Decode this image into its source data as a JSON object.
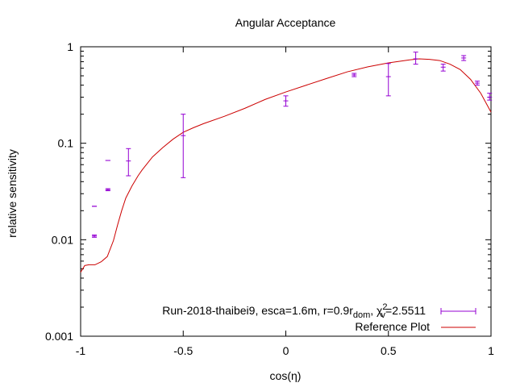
{
  "chart_data": {
    "type": "scatter",
    "title": "Angular Acceptance",
    "xlabel": "cos(η)",
    "ylabel": "relative sensitivity",
    "xlim": [
      -1,
      1
    ],
    "ylim": [
      0.001,
      1
    ],
    "yscale": "log",
    "grid": false,
    "legend_position": "bottom-right",
    "x_ticks": [
      {
        "value": -1,
        "label": "-1"
      },
      {
        "value": -0.5,
        "label": "-0.5"
      },
      {
        "value": 0,
        "label": "0"
      },
      {
        "value": 0.5,
        "label": "0.5"
      },
      {
        "value": 1,
        "label": "1"
      }
    ],
    "y_ticks": [
      {
        "value": 0.001,
        "label": "0.001"
      },
      {
        "value": 0.01,
        "label": "0.01"
      },
      {
        "value": 0.1,
        "label": "0.1"
      },
      {
        "value": 1,
        "label": "1"
      }
    ],
    "series": [
      {
        "name": "Run-2018-thaibei9, esca=1.6m, r=0.9r",
        "name_sub": "dom",
        "name_chi": ", χ",
        "name_chi_sup": "2",
        "name_chi_sub": "v",
        "name_tail": "=2.5511",
        "style": "errorbar",
        "color": "#9400d3",
        "points": [
          {
            "x": -0.933,
            "y": 0.0222,
            "ylo": 0.0222,
            "yhi": 0.0222
          },
          {
            "x": -0.933,
            "y": 0.0109,
            "ylo": 0.0106,
            "yhi": 0.0112
          },
          {
            "x": -0.867,
            "y": 0.0663,
            "ylo": 0.0663,
            "yhi": 0.0663
          },
          {
            "x": -0.867,
            "y": 0.033,
            "ylo": 0.0322,
            "yhi": 0.0338
          },
          {
            "x": -0.767,
            "y": 0.0655,
            "ylo": 0.046,
            "yhi": 0.088
          },
          {
            "x": -0.5,
            "y": 0.12,
            "ylo": 0.044,
            "yhi": 0.2
          },
          {
            "x": 0.0,
            "y": 0.275,
            "ylo": 0.242,
            "yhi": 0.31
          },
          {
            "x": 0.333,
            "y": 0.51,
            "ylo": 0.49,
            "yhi": 0.53
          },
          {
            "x": 0.5,
            "y": 0.49,
            "ylo": 0.31,
            "yhi": 0.67
          },
          {
            "x": 0.633,
            "y": 0.75,
            "ylo": 0.66,
            "yhi": 0.88
          },
          {
            "x": 0.767,
            "y": 0.615,
            "ylo": 0.56,
            "yhi": 0.66
          },
          {
            "x": 0.867,
            "y": 0.765,
            "ylo": 0.72,
            "yhi": 0.81
          },
          {
            "x": 0.933,
            "y": 0.42,
            "ylo": 0.4,
            "yhi": 0.44
          },
          {
            "x": 0.993,
            "y": 0.3,
            "ylo": 0.28,
            "yhi": 0.33
          }
        ]
      },
      {
        "name": "Reference Plot",
        "style": "line",
        "color": "#cc0000",
        "x": [
          -1.0,
          -0.98,
          -0.96,
          -0.93,
          -0.9,
          -0.87,
          -0.84,
          -0.82,
          -0.8,
          -0.78,
          -0.75,
          -0.72,
          -0.7,
          -0.65,
          -0.6,
          -0.55,
          -0.5,
          -0.45,
          -0.4,
          -0.3,
          -0.2,
          -0.1,
          0.0,
          0.1,
          0.2,
          0.3,
          0.4,
          0.5,
          0.6,
          0.65,
          0.7,
          0.75,
          0.8,
          0.85,
          0.9,
          0.95,
          1.0
        ],
        "y": [
          0.0046,
          0.0054,
          0.0055,
          0.0055,
          0.0059,
          0.0067,
          0.0098,
          0.0142,
          0.02,
          0.027,
          0.036,
          0.046,
          0.053,
          0.072,
          0.09,
          0.11,
          0.13,
          0.145,
          0.16,
          0.19,
          0.23,
          0.285,
          0.34,
          0.4,
          0.47,
          0.55,
          0.62,
          0.68,
          0.73,
          0.75,
          0.74,
          0.72,
          0.66,
          0.58,
          0.46,
          0.33,
          0.21
        ]
      }
    ]
  }
}
